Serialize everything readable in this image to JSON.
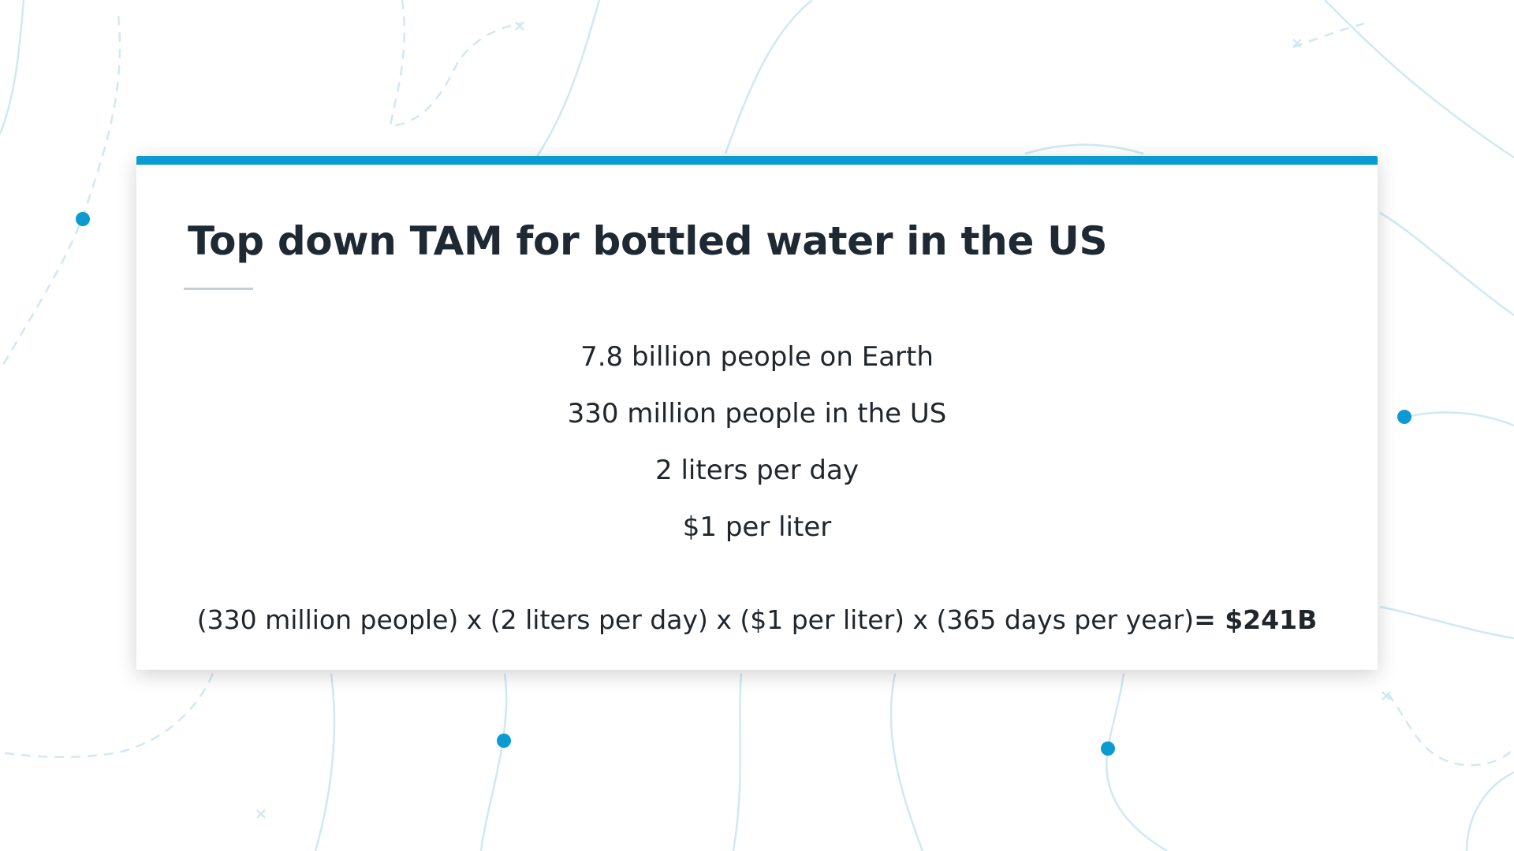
{
  "slide": {
    "title": "Top down TAM for bottled water in the US",
    "facts": [
      "7.8 billion people on Earth",
      "330 million people in the US",
      "2 liters per day",
      "$1 per liter"
    ],
    "formula": {
      "expression": "(330 million people) x (2 liters per day) x ($1 per liter) x (365 days per year)",
      "result": "= $241B"
    }
  },
  "colors": {
    "accent": "#0b9bd1",
    "background_lines": "#cfe9f3",
    "text": "#1f2933"
  }
}
